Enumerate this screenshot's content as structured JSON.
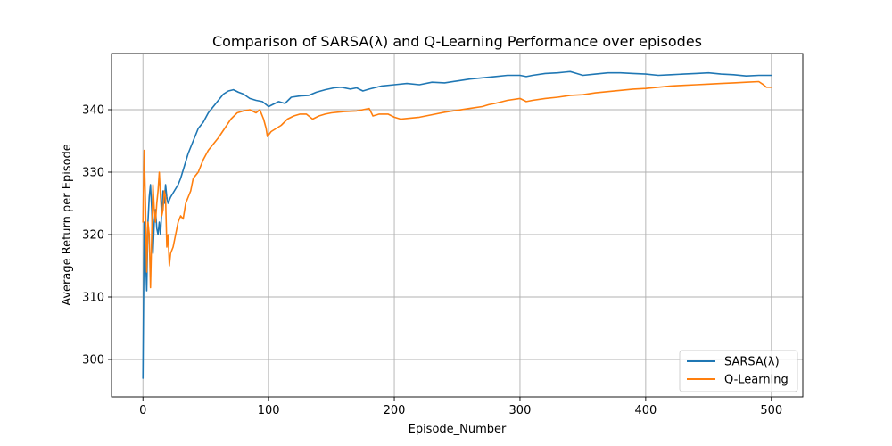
{
  "chart_data": {
    "type": "line",
    "title": "Comparison of SARSA(λ) and Q-Learning Performance over episodes",
    "xlabel": "Episode_Number",
    "ylabel": "Average Return per Episode",
    "xlim": [
      -25,
      525
    ],
    "ylim": [
      294,
      349
    ],
    "x_ticks": [
      0,
      100,
      200,
      300,
      400,
      500
    ],
    "y_ticks": [
      300,
      310,
      320,
      330,
      340
    ],
    "grid": true,
    "legend_position": "lower-right",
    "series": [
      {
        "name": "SARSA(λ)",
        "color": "#1f77b4",
        "points": [
          [
            0,
            297
          ],
          [
            1,
            322
          ],
          [
            2,
            317
          ],
          [
            3,
            311
          ],
          [
            4,
            322
          ],
          [
            5,
            326
          ],
          [
            6,
            328
          ],
          [
            7,
            324
          ],
          [
            8,
            317
          ],
          [
            9,
            322
          ],
          [
            10,
            324
          ],
          [
            11,
            321
          ],
          [
            12,
            320
          ],
          [
            13,
            322
          ],
          [
            14,
            320
          ],
          [
            15,
            324
          ],
          [
            16,
            327
          ],
          [
            17,
            325
          ],
          [
            18,
            328
          ],
          [
            19,
            326
          ],
          [
            20,
            325
          ],
          [
            22,
            326
          ],
          [
            25,
            327
          ],
          [
            28,
            328
          ],
          [
            30,
            329
          ],
          [
            33,
            331
          ],
          [
            36,
            333
          ],
          [
            40,
            335
          ],
          [
            44,
            337
          ],
          [
            48,
            338
          ],
          [
            52,
            339.5
          ],
          [
            56,
            340.5
          ],
          [
            60,
            341.5
          ],
          [
            64,
            342.5
          ],
          [
            68,
            343
          ],
          [
            72,
            343.2
          ],
          [
            76,
            342.8
          ],
          [
            80,
            342.5
          ],
          [
            85,
            341.8
          ],
          [
            90,
            341.5
          ],
          [
            95,
            341.3
          ],
          [
            100,
            340.5
          ],
          [
            103,
            340.8
          ],
          [
            108,
            341.3
          ],
          [
            113,
            341
          ],
          [
            118,
            342
          ],
          [
            125,
            342.2
          ],
          [
            132,
            342.3
          ],
          [
            138,
            342.8
          ],
          [
            145,
            343.2
          ],
          [
            152,
            343.5
          ],
          [
            158,
            343.6
          ],
          [
            165,
            343.3
          ],
          [
            170,
            343.5
          ],
          [
            175,
            343
          ],
          [
            180,
            343.3
          ],
          [
            190,
            343.8
          ],
          [
            200,
            344
          ],
          [
            210,
            344.2
          ],
          [
            220,
            344
          ],
          [
            230,
            344.4
          ],
          [
            240,
            344.3
          ],
          [
            250,
            344.6
          ],
          [
            260,
            344.9
          ],
          [
            270,
            345.1
          ],
          [
            280,
            345.3
          ],
          [
            290,
            345.5
          ],
          [
            300,
            345.5
          ],
          [
            305,
            345.3
          ],
          [
            310,
            345.5
          ],
          [
            320,
            345.8
          ],
          [
            330,
            345.9
          ],
          [
            340,
            346.1
          ],
          [
            345,
            345.8
          ],
          [
            350,
            345.5
          ],
          [
            360,
            345.7
          ],
          [
            370,
            345.9
          ],
          [
            380,
            345.9
          ],
          [
            390,
            345.8
          ],
          [
            400,
            345.7
          ],
          [
            410,
            345.5
          ],
          [
            420,
            345.6
          ],
          [
            430,
            345.7
          ],
          [
            440,
            345.8
          ],
          [
            450,
            345.9
          ],
          [
            460,
            345.7
          ],
          [
            470,
            345.6
          ],
          [
            480,
            345.4
          ],
          [
            490,
            345.5
          ],
          [
            500,
            345.5
          ]
        ]
      },
      {
        "name": "Q-Learning",
        "color": "#ff7f0e",
        "points": [
          [
            0,
            322
          ],
          [
            1,
            333.5
          ],
          [
            2,
            325
          ],
          [
            3,
            314
          ],
          [
            4,
            322
          ],
          [
            5,
            320
          ],
          [
            6,
            311.5
          ],
          [
            7,
            320
          ],
          [
            8,
            328
          ],
          [
            9,
            324
          ],
          [
            10,
            322
          ],
          [
            11,
            325
          ],
          [
            12,
            327
          ],
          [
            13,
            330
          ],
          [
            14,
            326
          ],
          [
            15,
            323
          ],
          [
            16,
            324
          ],
          [
            17,
            327
          ],
          [
            18,
            326
          ],
          [
            19,
            318
          ],
          [
            20,
            320
          ],
          [
            21,
            315
          ],
          [
            22,
            317
          ],
          [
            24,
            318
          ],
          [
            26,
            320
          ],
          [
            28,
            322
          ],
          [
            30,
            323
          ],
          [
            32,
            322.5
          ],
          [
            34,
            325
          ],
          [
            36,
            326
          ],
          [
            38,
            327
          ],
          [
            40,
            329
          ],
          [
            44,
            330
          ],
          [
            48,
            332
          ],
          [
            52,
            333.5
          ],
          [
            56,
            334.5
          ],
          [
            60,
            335.5
          ],
          [
            65,
            337
          ],
          [
            70,
            338.5
          ],
          [
            75,
            339.5
          ],
          [
            80,
            339.8
          ],
          [
            85,
            340
          ],
          [
            90,
            339.5
          ],
          [
            93,
            340
          ],
          [
            96,
            338.5
          ],
          [
            98,
            337
          ],
          [
            99,
            335.7
          ],
          [
            102,
            336.5
          ],
          [
            106,
            337
          ],
          [
            110,
            337.5
          ],
          [
            115,
            338.5
          ],
          [
            120,
            339
          ],
          [
            125,
            339.3
          ],
          [
            130,
            339.3
          ],
          [
            135,
            338.5
          ],
          [
            140,
            339
          ],
          [
            145,
            339.3
          ],
          [
            150,
            339.5
          ],
          [
            160,
            339.7
          ],
          [
            170,
            339.8
          ],
          [
            180,
            340.2
          ],
          [
            183,
            339
          ],
          [
            188,
            339.3
          ],
          [
            195,
            339.3
          ],
          [
            200,
            338.8
          ],
          [
            205,
            338.5
          ],
          [
            210,
            338.6
          ],
          [
            220,
            338.8
          ],
          [
            230,
            339.2
          ],
          [
            240,
            339.6
          ],
          [
            250,
            339.9
          ],
          [
            260,
            340.2
          ],
          [
            270,
            340.5
          ],
          [
            275,
            340.8
          ],
          [
            280,
            341
          ],
          [
            290,
            341.5
          ],
          [
            300,
            341.8
          ],
          [
            305,
            341.3
          ],
          [
            310,
            341.5
          ],
          [
            320,
            341.8
          ],
          [
            330,
            342
          ],
          [
            340,
            342.3
          ],
          [
            350,
            342.4
          ],
          [
            360,
            342.7
          ],
          [
            370,
            342.9
          ],
          [
            380,
            343.1
          ],
          [
            390,
            343.3
          ],
          [
            400,
            343.4
          ],
          [
            410,
            343.6
          ],
          [
            420,
            343.8
          ],
          [
            430,
            343.9
          ],
          [
            440,
            344
          ],
          [
            450,
            344.1
          ],
          [
            460,
            344.2
          ],
          [
            470,
            344.3
          ],
          [
            480,
            344.4
          ],
          [
            490,
            344.5
          ],
          [
            493,
            344.1
          ],
          [
            496,
            343.6
          ],
          [
            500,
            343.6
          ]
        ]
      }
    ]
  }
}
